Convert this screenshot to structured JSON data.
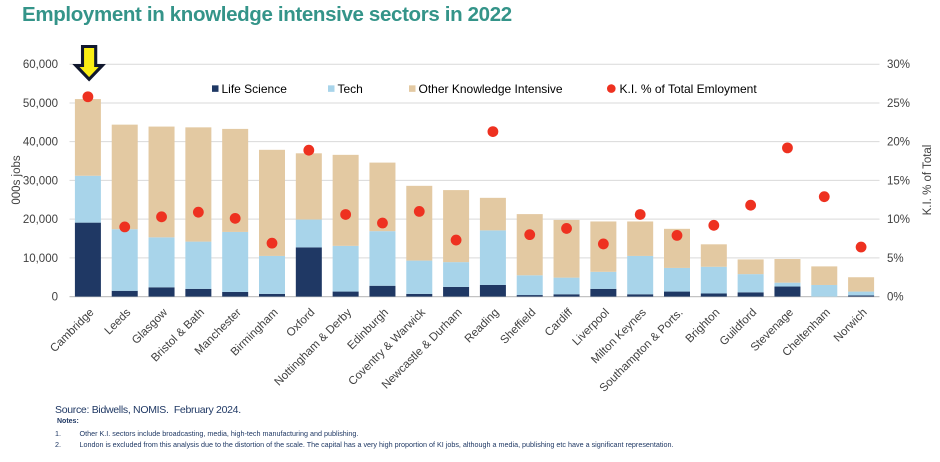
{
  "title": "Employment in knowledge intensive sectors in 2022",
  "footer": {
    "source": "Source: Bidwells, NOMIS.  February 2024.",
    "notes_label": "Notes:",
    "notes": [
      {
        "num": "1.",
        "text": "Other K.I. sectors include broadcasting, media, high-tech manufacturing and publishing."
      },
      {
        "num": "2.",
        "text": "London is excluded from this analysis due to the distortion of the scale. The capital has a very high proportion of KI jobs, although a media, publishing etc have a significant representation."
      }
    ]
  },
  "colors": {
    "title_teal": "#349489",
    "life_science_navy": "#1F3864",
    "tech_light_blue": "#A8D4EA",
    "other_ki_tan": "#E3C9A2",
    "ki_dot_red": "#EE3120",
    "footer_navy": "#1F3864",
    "axis_label_gray": "#404040",
    "gridline_gray": "#D9D9D9",
    "baseline_gray": "#C3C3C3",
    "arrow_yellow": "#FAEE14",
    "arrow_outline_navy": "#11182E"
  },
  "annotations": {
    "highlight_arrow": "yellow-down-arrow-above-cambridge-bar"
  },
  "chart_data": {
    "type": "bar",
    "subtype": "stacked-column-with-scatter-overlay",
    "title": "Employment in knowledge intensive sectors in 2022",
    "categories": [
      "Cambridge",
      "Leeds",
      "Glasgow",
      "Bristol & Bath",
      "Manchester",
      "Birmingham",
      "Oxford",
      "Nottingham & Derby",
      "Edinburgh",
      "Coventry & Warwick",
      "Newcastle & Durham",
      "Reading",
      "Sheffield",
      "Cardiff",
      "Liverpool",
      "Milton Keynes",
      "Southampton & Ports.",
      "Brighton",
      "Guildford",
      "Stevenage",
      "Cheltenham",
      "Norwich"
    ],
    "series": [
      {
        "name": "Life Science",
        "type": "bar",
        "color": "#1F3864",
        "values": [
          19100,
          1500,
          2400,
          2000,
          1200,
          700,
          12700,
          1300,
          2800,
          700,
          2500,
          3000,
          400,
          600,
          2000,
          600,
          1300,
          800,
          1100,
          2600,
          0,
          300
        ]
      },
      {
        "name": "Tech",
        "type": "bar",
        "color": "#A8D4EA",
        "values": [
          12100,
          15900,
          12900,
          12200,
          15500,
          9800,
          7200,
          11800,
          14100,
          8600,
          6400,
          14100,
          5100,
          4300,
          4400,
          9900,
          6100,
          6900,
          4700,
          1000,
          3000,
          1000
        ]
      },
      {
        "name": "Other Knowledge Intensive",
        "type": "bar",
        "color": "#E3C9A2",
        "values": [
          19800,
          27000,
          28600,
          29500,
          26600,
          27400,
          17100,
          23500,
          17700,
          19300,
          18600,
          8400,
          15800,
          14900,
          13000,
          8900,
          10100,
          5800,
          3800,
          6100,
          4800,
          3700
        ]
      },
      {
        "name": "K.I. % of Total Emloyment",
        "type": "scatter",
        "axis": "right",
        "color": "#EE3120",
        "values": [
          25.8,
          9.0,
          10.3,
          10.9,
          10.1,
          6.9,
          18.9,
          10.6,
          9.5,
          11.0,
          7.3,
          21.3,
          8.0,
          8.8,
          6.8,
          10.6,
          7.9,
          9.2,
          11.8,
          19.2,
          12.9,
          6.4
        ]
      }
    ],
    "left_axis": {
      "title": "000s jobs",
      "min": 0,
      "max": 60000,
      "tick_labels": [
        "0",
        "10,000",
        "20,000",
        "30,000",
        "40,000",
        "50,000",
        "60,000"
      ]
    },
    "right_axis": {
      "title": "K.I. % of Total",
      "min": 0,
      "max": 30,
      "tick_labels": [
        "0%",
        "5%",
        "10%",
        "15%",
        "20%",
        "25%",
        "30%"
      ]
    },
    "grid": true,
    "legend_position": "top-center"
  }
}
